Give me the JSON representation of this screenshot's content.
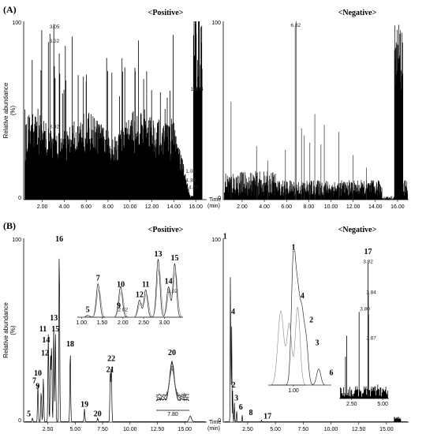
{
  "panel_labels": [
    "(A)",
    "(B)"
  ],
  "chart_data": [
    {
      "type": "line",
      "panel": "A",
      "mode_label": "<Positive>",
      "ylabel": "Relative abundance (%)",
      "xlabel": "Time (min)",
      "ylim": [
        0,
        100
      ],
      "y_tick_labels": [
        "0",
        "100"
      ],
      "xlim": [
        0.3,
        17.0
      ],
      "x_tick_labels": [
        "2.00",
        "4.00",
        "6.00",
        "8.00",
        "10.00",
        "12.00",
        "14.00",
        "16.00"
      ],
      "x_ticks": [
        2,
        4,
        6,
        8,
        10,
        12,
        14,
        16
      ],
      "peak_annotations": [
        {
          "label": "3.05",
          "x": 3.05,
          "y": 96
        },
        {
          "label": "3.02",
          "x": 3.02,
          "y": 88
        },
        {
          "label": "3.02",
          "x": 3.02,
          "y": 40
        },
        {
          "label": "16.04",
          "x": 16.04,
          "y": 61
        },
        {
          "label": "1.08",
          "x": 15.0,
          "y": 15
        },
        {
          "label": "4.38",
          "x": 15.0,
          "y": 10
        },
        {
          "label": "14.80",
          "x": 15.0,
          "y": 6
        }
      ]
    },
    {
      "type": "line",
      "panel": "A",
      "mode_label": "<Negative>",
      "ylim": [
        0,
        100
      ],
      "y_tick_labels": [
        "0",
        "100"
      ],
      "xlim": [
        0.3,
        17.0
      ],
      "x_tick_labels": [
        "2.00",
        "4.00",
        "6.00",
        "8.00",
        "10.00",
        "12.00",
        "14.00",
        "16.00"
      ],
      "x_ticks": [
        2,
        4,
        6,
        8,
        10,
        12,
        14,
        16
      ],
      "peak_annotations": [
        {
          "label": "6.82",
          "x": 6.82,
          "y": 97
        }
      ]
    },
    {
      "type": "line",
      "panel": "B",
      "mode_label": "<Positive>",
      "ylabel": "Relative abundance (%)",
      "xlabel": "Time (min)",
      "ylim": [
        0,
        100
      ],
      "y_tick_labels": [
        "0",
        "100"
      ],
      "xlim": [
        0.3,
        17.0
      ],
      "x_tick_labels": [
        "2.50",
        "5.00",
        "7.50",
        "10.00",
        "12.50",
        "15.00"
      ],
      "x_ticks": [
        2.5,
        5.0,
        7.5,
        10.0,
        12.5,
        15.0
      ],
      "peaks": [
        {
          "label": "5",
          "x": 1.1,
          "y": 2
        },
        {
          "label": "7",
          "x": 1.6,
          "y": 20
        },
        {
          "label": "9",
          "x": 1.9,
          "y": 17
        },
        {
          "label": "10",
          "x": 2.1,
          "y": 24
        },
        {
          "label": "11",
          "x": 2.55,
          "y": 48
        },
        {
          "label": "12",
          "x": 2.75,
          "y": 35
        },
        {
          "label": "13",
          "x": 3.05,
          "y": 54
        },
        {
          "label": "14",
          "x": 2.85,
          "y": 42
        },
        {
          "label": "15",
          "x": 3.2,
          "y": 48
        },
        {
          "label": "16",
          "x": 3.55,
          "y": 97
        },
        {
          "label": "18",
          "x": 4.55,
          "y": 40
        },
        {
          "label": "19",
          "x": 5.85,
          "y": 7
        },
        {
          "label": "20",
          "x": 7.05,
          "y": 2
        },
        {
          "label": "21",
          "x": 8.2,
          "y": 26
        },
        {
          "label": "22",
          "x": 8.3,
          "y": 32
        }
      ],
      "inset_peaks": [
        {
          "label": "5",
          "x": 1.15,
          "y": 3
        },
        {
          "label": "7",
          "x": 1.4,
          "y": 55
        },
        {
          "label": "9",
          "x": 1.9,
          "y": 10
        },
        {
          "label": "10",
          "x": 1.95,
          "y": 45
        },
        {
          "label": "12",
          "x": 2.4,
          "y": 28
        },
        {
          "label": "11",
          "x": 2.55,
          "y": 45
        },
        {
          "label": "13",
          "x": 2.85,
          "y": 95
        },
        {
          "label": "14",
          "x": 3.1,
          "y": 50
        },
        {
          "label": "15",
          "x": 3.25,
          "y": 88
        }
      ],
      "inset_x_tick_labels": [
        "1.00",
        "1.50",
        "2.00",
        "2.50",
        "3.00"
      ],
      "inset_annotations": [
        {
          "label": "3.02",
          "x": 3.2,
          "y": 40
        },
        {
          "label": "2.02",
          "x": 2.0,
          "y": 10
        }
      ],
      "inset2_label": "20",
      "inset2_x_tick_labels": [
        "7.80"
      ]
    },
    {
      "type": "line",
      "panel": "B",
      "mode_label": "<Negative>",
      "ylim": [
        0,
        100
      ],
      "y_tick_labels": [
        "0",
        "100"
      ],
      "xlim": [
        0.3,
        17.0
      ],
      "x_tick_labels": [
        "2.50",
        "5.00",
        "7.50",
        "10.00",
        "12.50",
        "15.00"
      ],
      "x_ticks": [
        2.5,
        5.0,
        7.5,
        10.0,
        12.5,
        15.0
      ],
      "peaks": [
        {
          "label": "1",
          "x": 0.95,
          "y": 97
        },
        {
          "label": "4",
          "x": 1.05,
          "y": 58
        },
        {
          "label": "2",
          "x": 1.15,
          "y": 18
        },
        {
          "label": "3",
          "x": 1.3,
          "y": 11
        },
        {
          "label": "6",
          "x": 1.5,
          "y": 7
        },
        {
          "label": "8",
          "x": 2.0,
          "y": 4
        },
        {
          "label": "17",
          "x": 3.75,
          "y": 1
        }
      ],
      "inset_peaks": [
        {
          "label": "1",
          "x": 1.0,
          "y": 95
        },
        {
          "label": "4",
          "x": 1.05,
          "y": 60
        },
        {
          "label": "2",
          "x": 1.1,
          "y": 48
        },
        {
          "label": "3",
          "x": 1.15,
          "y": 32
        },
        {
          "label": "6",
          "x": 1.3,
          "y": 12
        }
      ],
      "inset_x_tick_labels": [
        "1.00"
      ],
      "inset2_label": "17",
      "inset2_x_tick_labels": [
        "2.50",
        "5.00"
      ],
      "inset2_annotations": [
        {
          "label": "3.82",
          "y": 97
        },
        {
          "label": "3.84",
          "y": 75
        },
        {
          "label": "3.80",
          "y": 63
        },
        {
          "label": "3.87",
          "y": 42
        },
        {
          "label": "3.88",
          "y": 6
        }
      ]
    }
  ]
}
